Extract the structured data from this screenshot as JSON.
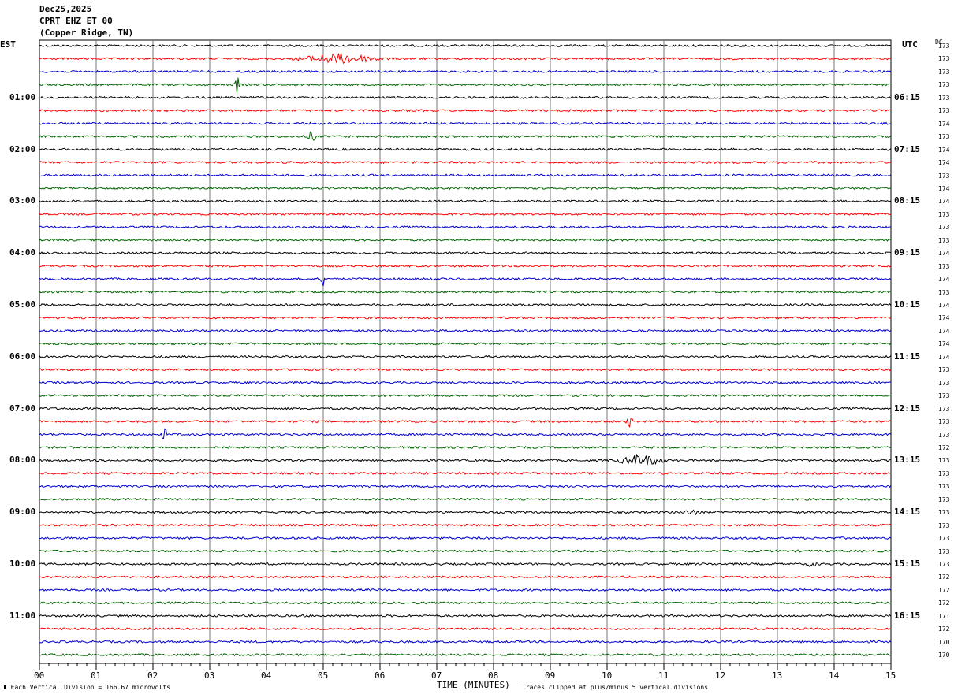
{
  "header": {
    "date": "Dec25,2025",
    "station": "CPRT EHZ ET 00",
    "location": "(Copper Ridge, TN)"
  },
  "left_axis_title": "EST",
  "right_axis_title": "UTC",
  "dc_title": "DC",
  "bottom": {
    "scale_text": "Each Vertical Division =  166.67 microvolts",
    "xlabel": "TIME (MINUTES)",
    "clip_text": "Traces clipped at plus/minus 5 vertical divisions"
  },
  "chart_data": {
    "type": "line",
    "title": "",
    "xlabel": "TIME (MINUTES)",
    "ylabel": "",
    "xlim": [
      0,
      15
    ],
    "x_ticks": [
      "00",
      "01",
      "02",
      "03",
      "04",
      "05",
      "06",
      "07",
      "08",
      "09",
      "10",
      "11",
      "12",
      "13",
      "14",
      "15"
    ],
    "grid": true,
    "trace_count": 48,
    "trace_colors": [
      "#000000",
      "#ff0000",
      "#0000cc",
      "#006600"
    ],
    "left_time_labels": [
      "01:00",
      "02:00",
      "03:00",
      "04:00",
      "05:00",
      "06:00",
      "07:00",
      "08:00",
      "09:00",
      "10:00",
      "11:00"
    ],
    "right_time_labels": [
      "06:15",
      "07:15",
      "08:15",
      "09:15",
      "10:15",
      "11:15",
      "12:15",
      "13:15",
      "14:15",
      "15:15",
      "16:15"
    ],
    "dc_offsets": [
      "173",
      "173",
      "173",
      "173",
      "173",
      "173",
      "174",
      "173",
      "174",
      "174",
      "173",
      "174",
      "174",
      "173",
      "173",
      "173",
      "174",
      "173",
      "174",
      "173",
      "174",
      "174",
      "174",
      "174",
      "174",
      "173",
      "173",
      "173",
      "173",
      "173",
      "173",
      "172",
      "173",
      "173",
      "173",
      "173",
      "173",
      "173",
      "173",
      "173",
      "173",
      "172",
      "172",
      "172",
      "171",
      "172",
      "170",
      "170"
    ],
    "events": [
      {
        "trace": 1,
        "minute": 5.3,
        "amplitude": 6,
        "width": 0.9
      },
      {
        "trace": 3,
        "minute": 3.48,
        "amplitude": 14,
        "width": 0.05
      },
      {
        "trace": 7,
        "minute": 4.8,
        "amplitude": 8,
        "width": 0.08
      },
      {
        "trace": 18,
        "minute": 5.0,
        "amplitude": 8,
        "width": 0.06
      },
      {
        "trace": 30,
        "minute": 2.2,
        "amplitude": 9,
        "width": 0.06
      },
      {
        "trace": 29,
        "minute": 10.4,
        "amplitude": 6,
        "width": 0.08
      },
      {
        "trace": 32,
        "minute": 10.6,
        "amplitude": 7,
        "width": 0.5
      },
      {
        "trace": 36,
        "minute": 11.5,
        "amplitude": 3,
        "width": 0.2
      },
      {
        "trace": 40,
        "minute": 13.6,
        "amplitude": 4,
        "width": 0.1
      }
    ]
  }
}
